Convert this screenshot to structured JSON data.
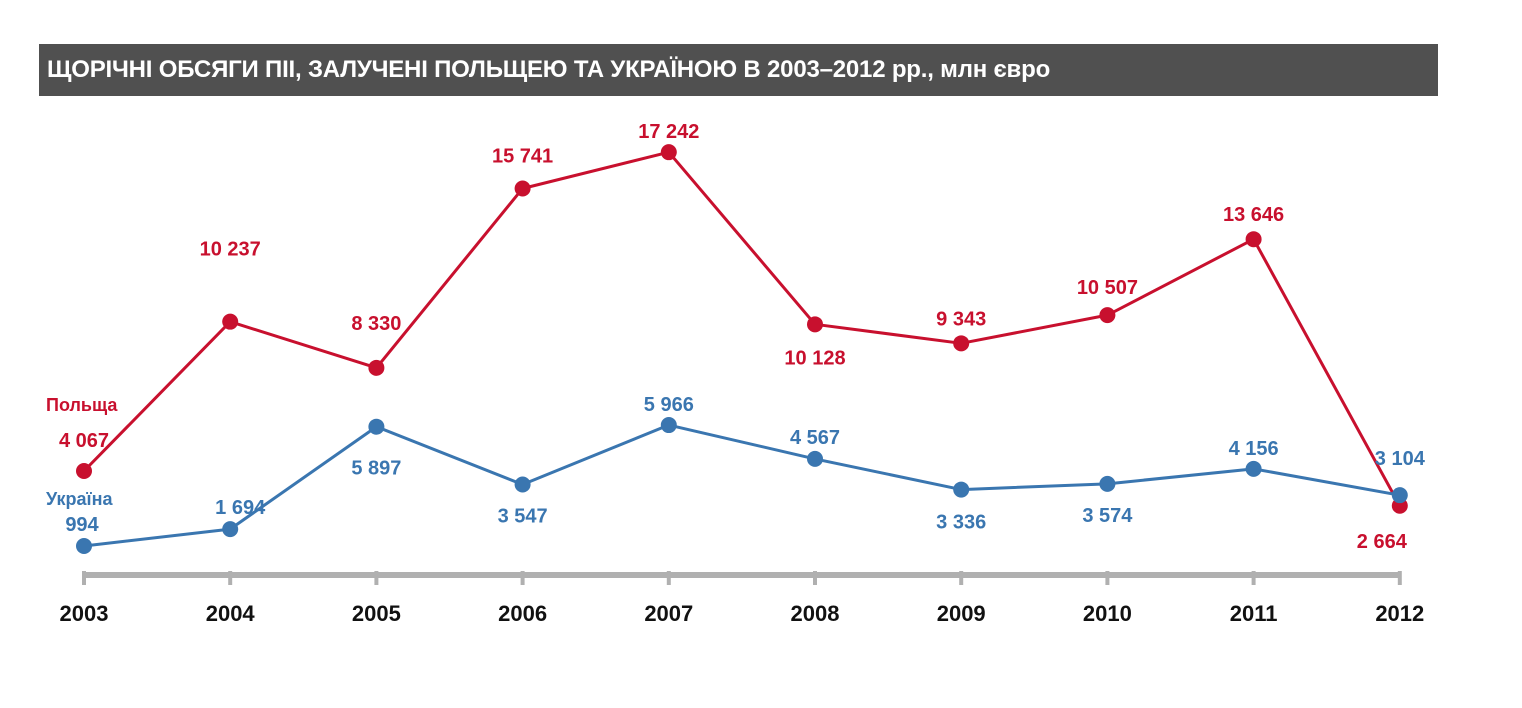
{
  "chart_data": {
    "type": "line",
    "title": "ЩОРІЧНІ ОБСЯГИ ПІІ, ЗАЛУЧЕНІ ПОЛЬЩЕЮ ТА УКРАЇНОЮ В 2003–2012 рр., млн євро",
    "xlabel": "",
    "ylabel": "",
    "grid": false,
    "legend": "inline labels at left",
    "categories": [
      "2003",
      "2004",
      "2005",
      "2006",
      "2007",
      "2008",
      "2009",
      "2010",
      "2011",
      "2012"
    ],
    "series": [
      {
        "name": "Польща",
        "color": "#c8102e",
        "values": [
          4067,
          10237,
          8330,
          15741,
          17242,
          10128,
          9343,
          10507,
          13646,
          2664
        ],
        "labels": [
          "4 067",
          "10 237",
          "8 330",
          "15 741",
          "17 242",
          "10 128",
          "9 343",
          "10 507",
          "13 646",
          "2 664"
        ]
      },
      {
        "name": "Україна",
        "color": "#3a76b0",
        "values": [
          994,
          1694,
          5897,
          3547,
          5966,
          4567,
          3336,
          3574,
          4156,
          3104
        ],
        "labels": [
          "994",
          "1 694",
          "5 897",
          "3 547",
          "5 966",
          "4 567",
          "3 336",
          "3 574",
          "4 156",
          "3 104"
        ]
      }
    ],
    "ylim": [
      0,
      18000
    ]
  }
}
